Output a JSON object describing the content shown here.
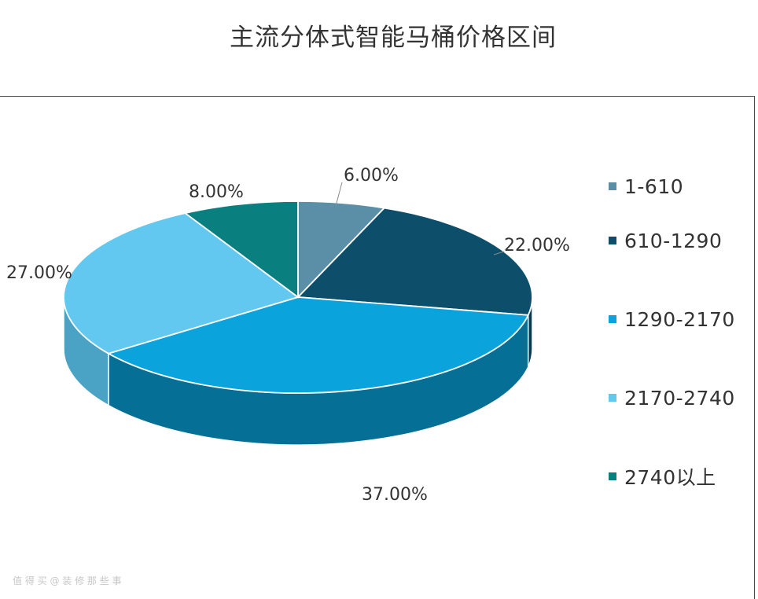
{
  "chart_data": {
    "type": "pie",
    "style": "3d",
    "title": "主流分体式智能马桶价格区间",
    "categories": [
      "1-610",
      "610-1290",
      "1290-2170",
      "2170-2740",
      "2740以上"
    ],
    "values": [
      6.0,
      22.0,
      37.0,
      27.0,
      8.0
    ],
    "value_labels": [
      "6.00%",
      "22.00%",
      "37.00%",
      "27.00%",
      "8.00%"
    ],
    "colors": [
      "#5b8fa8",
      "#0d4f6b",
      "#0aa3dc",
      "#62c8ef",
      "#0a7f7f"
    ],
    "side_colors": [
      "#4a778d",
      "#083a50",
      "#066f96",
      "#4aa3c4",
      "#066161"
    ],
    "legend_position": "right",
    "grid": false
  },
  "watermark": "值 得 买 @ 装 修 那 些 事"
}
